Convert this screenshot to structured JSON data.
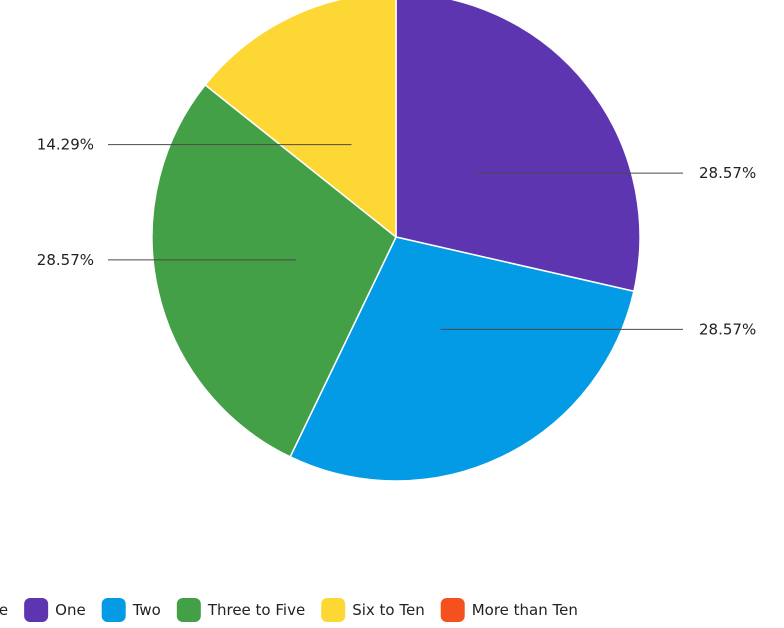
{
  "chart_data": {
    "type": "pie",
    "title": "",
    "slices": [
      {
        "label": "None",
        "value": 0,
        "percent_label": "",
        "color": "#1a5fb4"
      },
      {
        "label": "One",
        "value": 28.57,
        "percent_label": "28.57%",
        "color": "#5e35b1"
      },
      {
        "label": "Two",
        "value": 28.57,
        "percent_label": "28.57%",
        "color": "#039be5"
      },
      {
        "label": "Three to Five",
        "value": 28.57,
        "percent_label": "28.57%",
        "color": "#43a047"
      },
      {
        "label": "Six to Ten",
        "value": 14.29,
        "percent_label": "14.29%",
        "color": "#fdd835"
      },
      {
        "label": "More than Ten",
        "value": 0,
        "percent_label": "",
        "color": "#f4511e"
      }
    ],
    "legend_position": "bottom"
  }
}
